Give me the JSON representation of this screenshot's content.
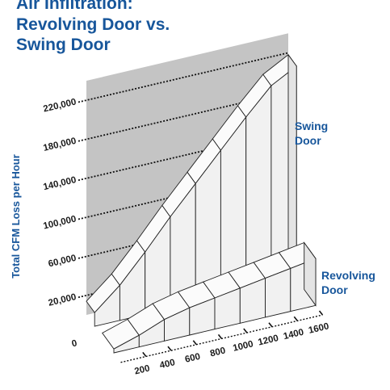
{
  "chart_data": {
    "type": "area",
    "title_lines": [
      "Air Infiltration:",
      "Revolving Door vs.",
      "Swing Door"
    ],
    "ylabel": "Total CFM Loss per Hour",
    "yticks": [
      "0",
      "20,000",
      "60,000",
      "100,000",
      "140,000",
      "180,000",
      "220,000"
    ],
    "ytick_values": [
      0,
      20000,
      60000,
      100000,
      140000,
      180000,
      220000
    ],
    "xticks": [
      "200",
      "400",
      "600",
      "800",
      "1000",
      "1200",
      "1400",
      "1600"
    ],
    "x": [
      0,
      200,
      400,
      600,
      800,
      1000,
      1200,
      1400,
      1600
    ],
    "series": [
      {
        "name": "Swing Door",
        "label_lines": [
          "Swing",
          "Door"
        ],
        "values": [
          14000,
          36000,
          64000,
          94000,
          122000,
          150000,
          178000,
          204000,
          218000
        ]
      },
      {
        "name": "Revolving Door",
        "label_lines": [
          "Revolving",
          "Door"
        ],
        "values": [
          4000,
          12000,
          22000,
          28000,
          32000,
          36000,
          40000,
          44000,
          48000
        ]
      }
    ],
    "grid": true,
    "colors": {
      "title": "#17569b",
      "wall": "#c4c4c4",
      "gridline": "#111111"
    }
  }
}
